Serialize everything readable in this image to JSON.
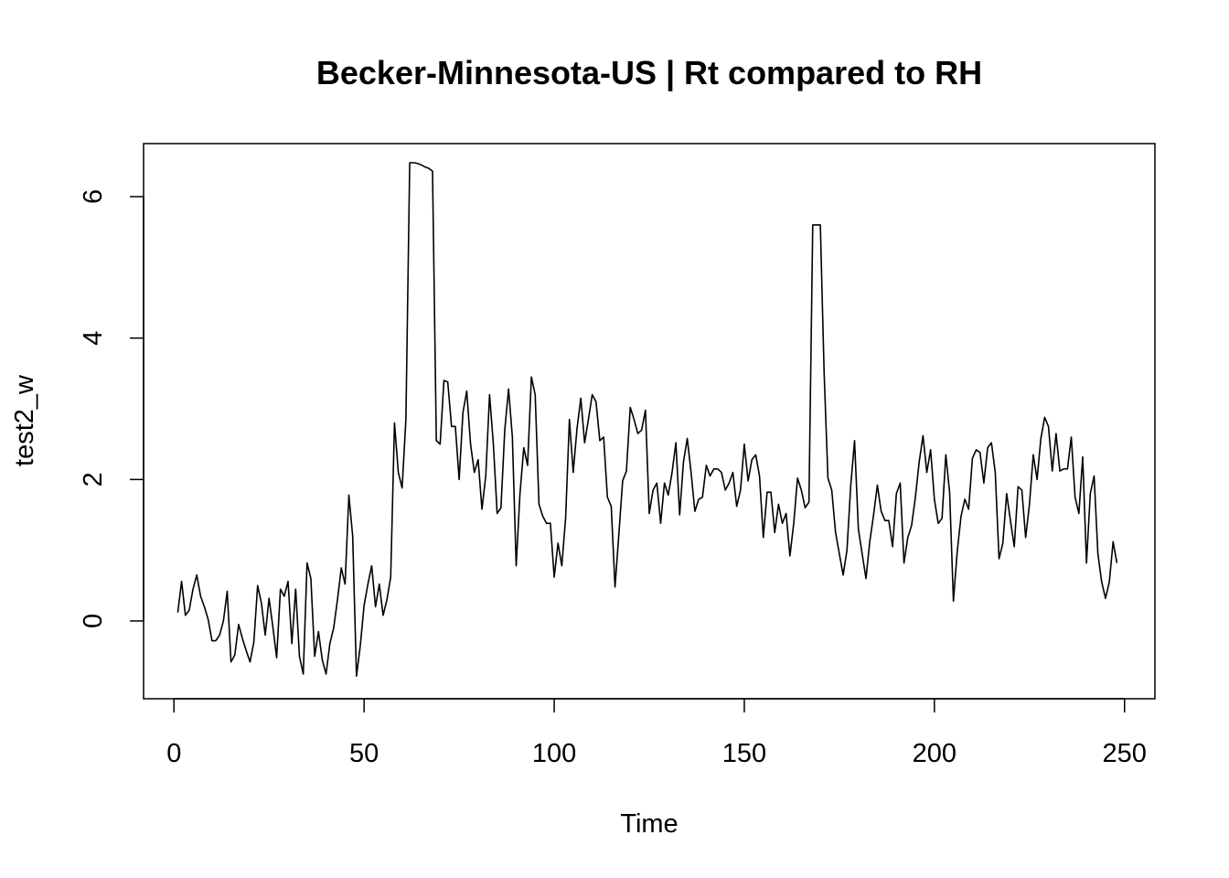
{
  "chart_data": {
    "type": "line",
    "title": "Becker-Minnesota-US | Rt compared to RH",
    "xlabel": "Time",
    "ylabel": "test2_w",
    "xlim": [
      -8,
      258
    ],
    "ylim": [
      -1.1,
      6.75
    ],
    "xticks": [
      0,
      50,
      100,
      150,
      200,
      250
    ],
    "yticks": [
      0,
      2,
      4,
      6
    ],
    "grid": false,
    "legend": "none",
    "line_color": "#000000",
    "series": [
      {
        "x_start": 1,
        "values": [
          0.12,
          0.56,
          0.08,
          0.15,
          0.45,
          0.65,
          0.35,
          0.2,
          0.02,
          -0.28,
          -0.28,
          -0.2,
          0.0,
          0.42,
          -0.58,
          -0.48,
          -0.05,
          -0.25,
          -0.42,
          -0.58,
          -0.3,
          0.5,
          0.25,
          -0.2,
          0.32,
          -0.08,
          -0.52,
          0.45,
          0.35,
          0.56,
          -0.32,
          0.45,
          -0.5,
          -0.75,
          0.82,
          0.6,
          -0.5,
          -0.15,
          -0.55,
          -0.75,
          -0.32,
          -0.1,
          0.3,
          0.75,
          0.52,
          1.78,
          1.2,
          -0.78,
          -0.35,
          0.22,
          0.52,
          0.78,
          0.2,
          0.52,
          0.08,
          0.3,
          0.62,
          2.8,
          2.1,
          1.88,
          2.85,
          6.48,
          6.48,
          6.47,
          6.45,
          6.42,
          6.4,
          6.36,
          2.55,
          2.5,
          3.4,
          3.38,
          2.75,
          2.75,
          2.0,
          2.95,
          3.25,
          2.5,
          2.1,
          2.28,
          1.58,
          2.05,
          3.2,
          2.5,
          1.52,
          1.6,
          2.7,
          3.28,
          2.6,
          0.78,
          1.8,
          2.45,
          2.2,
          3.45,
          3.2,
          1.65,
          1.48,
          1.38,
          1.38,
          0.62,
          1.1,
          0.78,
          1.45,
          2.85,
          2.1,
          2.72,
          3.15,
          2.52,
          2.85,
          3.2,
          3.1,
          2.55,
          2.6,
          1.75,
          1.62,
          0.48,
          1.22,
          1.98,
          2.12,
          3.02,
          2.85,
          2.65,
          2.7,
          2.98,
          1.52,
          1.85,
          1.95,
          1.38,
          1.95,
          1.78,
          2.1,
          2.52,
          1.5,
          2.25,
          2.58,
          2.1,
          1.55,
          1.72,
          1.75,
          2.2,
          2.05,
          2.15,
          2.15,
          2.1,
          1.85,
          1.95,
          2.1,
          1.62,
          1.85,
          2.5,
          1.98,
          2.28,
          2.35,
          2.05,
          1.18,
          1.82,
          1.82,
          1.25,
          1.65,
          1.38,
          1.52,
          0.92,
          1.38,
          2.02,
          1.85,
          1.6,
          1.68,
          5.6,
          5.6,
          5.6,
          3.5,
          2.02,
          1.85,
          1.25,
          0.95,
          0.65,
          1.0,
          1.92,
          2.55,
          1.3,
          0.95,
          0.6,
          1.12,
          1.5,
          1.92,
          1.55,
          1.42,
          1.42,
          1.05,
          1.8,
          1.95,
          0.82,
          1.18,
          1.35,
          1.75,
          2.25,
          2.62,
          2.1,
          2.42,
          1.72,
          1.38,
          1.45,
          2.35,
          1.82,
          0.28,
          0.98,
          1.48,
          1.72,
          1.58,
          2.3,
          2.42,
          2.38,
          1.95,
          2.45,
          2.52,
          2.1,
          0.88,
          1.1,
          1.8,
          1.42,
          1.05,
          1.9,
          1.85,
          1.18,
          1.65,
          2.35,
          2.0,
          2.58,
          2.88,
          2.75,
          2.12,
          2.65,
          2.12,
          2.15,
          2.15,
          2.6,
          1.75,
          1.52,
          2.32,
          0.82,
          1.8,
          2.05,
          0.95,
          0.55,
          0.32,
          0.55,
          1.12,
          0.82
        ]
      }
    ]
  }
}
